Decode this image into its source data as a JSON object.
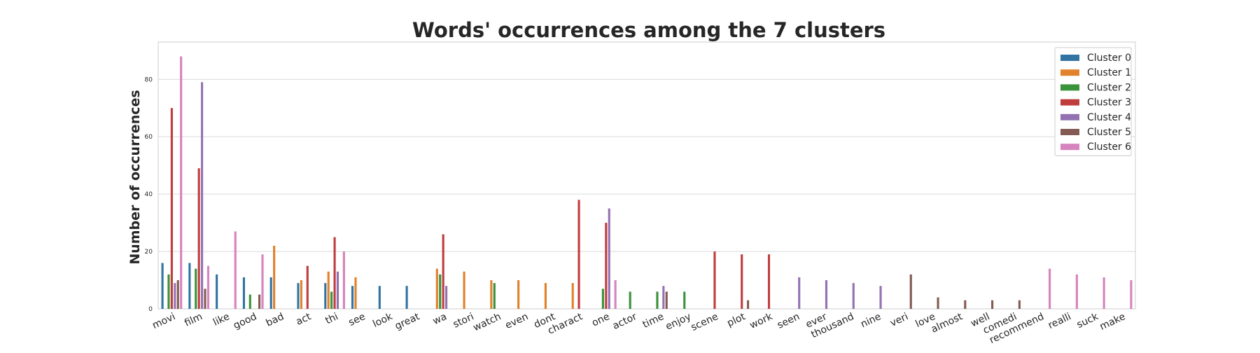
{
  "chart_data": {
    "type": "bar",
    "title": "Words' occurrences among the 7 clusters",
    "xlabel": "",
    "ylabel": "Number of occurrences",
    "ylim": [
      0,
      93
    ],
    "yticks": [
      0,
      20,
      40,
      60,
      80
    ],
    "grid": true,
    "legend_position": "top-right",
    "categories": [
      "movi",
      "film",
      "like",
      "good",
      "bad",
      "act",
      "thi",
      "see",
      "look",
      "great",
      "wa",
      "stori",
      "watch",
      "even",
      "dont",
      "charact",
      "one",
      "actor",
      "time",
      "enjoy",
      "scene",
      "plot",
      "work",
      "seen",
      "ever",
      "thousand",
      "nine",
      "veri",
      "love",
      "almost",
      "well",
      "comedi",
      "recommend",
      "realli",
      "suck",
      "make"
    ],
    "series": [
      {
        "name": "Cluster 0",
        "color": "#3274a1",
        "values": [
          16,
          16,
          12,
          11,
          11,
          9,
          9,
          8,
          8,
          8,
          null,
          null,
          null,
          null,
          null,
          null,
          null,
          null,
          null,
          null,
          null,
          null,
          null,
          null,
          null,
          null,
          null,
          null,
          null,
          null,
          null,
          null,
          null,
          null,
          null,
          null
        ]
      },
      {
        "name": "Cluster 1",
        "color": "#e1812c",
        "values": [
          null,
          null,
          null,
          null,
          22,
          10,
          13,
          11,
          null,
          null,
          14,
          13,
          10,
          10,
          9,
          9,
          null,
          null,
          null,
          null,
          null,
          null,
          null,
          null,
          null,
          null,
          null,
          null,
          null,
          null,
          null,
          null,
          null,
          null,
          null,
          null
        ]
      },
      {
        "name": "Cluster 2",
        "color": "#3a923a",
        "values": [
          12,
          14,
          null,
          5,
          null,
          null,
          6,
          null,
          null,
          null,
          12,
          null,
          9,
          null,
          null,
          null,
          7,
          6,
          6,
          6,
          null,
          null,
          null,
          null,
          null,
          null,
          null,
          null,
          null,
          null,
          null,
          null,
          null,
          null,
          null,
          null
        ]
      },
      {
        "name": "Cluster 3",
        "color": "#c03d3e",
        "values": [
          70,
          49,
          null,
          null,
          null,
          15,
          25,
          null,
          null,
          null,
          26,
          null,
          null,
          null,
          null,
          38,
          30,
          null,
          null,
          null,
          20,
          19,
          19,
          null,
          null,
          null,
          null,
          null,
          null,
          null,
          null,
          null,
          null,
          null,
          null,
          null
        ]
      },
      {
        "name": "Cluster 4",
        "color": "#9372b2",
        "values": [
          9,
          79,
          null,
          null,
          null,
          null,
          13,
          null,
          null,
          null,
          8,
          null,
          null,
          null,
          null,
          null,
          35,
          null,
          8,
          null,
          null,
          null,
          null,
          11,
          10,
          9,
          8,
          null,
          null,
          null,
          null,
          null,
          null,
          null,
          null,
          null
        ]
      },
      {
        "name": "Cluster 5",
        "color": "#845b53",
        "values": [
          10,
          7,
          null,
          5,
          null,
          null,
          null,
          null,
          null,
          null,
          null,
          null,
          null,
          null,
          null,
          null,
          null,
          null,
          6,
          null,
          null,
          3,
          null,
          null,
          null,
          null,
          null,
          12,
          4,
          3,
          3,
          3,
          null,
          null,
          null,
          null
        ]
      },
      {
        "name": "Cluster 6",
        "color": "#d684bd",
        "values": [
          88,
          15,
          27,
          19,
          null,
          null,
          20,
          null,
          null,
          null,
          null,
          null,
          null,
          null,
          null,
          null,
          10,
          null,
          null,
          null,
          null,
          null,
          null,
          null,
          null,
          null,
          null,
          null,
          null,
          null,
          null,
          null,
          14,
          12,
          11,
          10
        ]
      }
    ]
  }
}
